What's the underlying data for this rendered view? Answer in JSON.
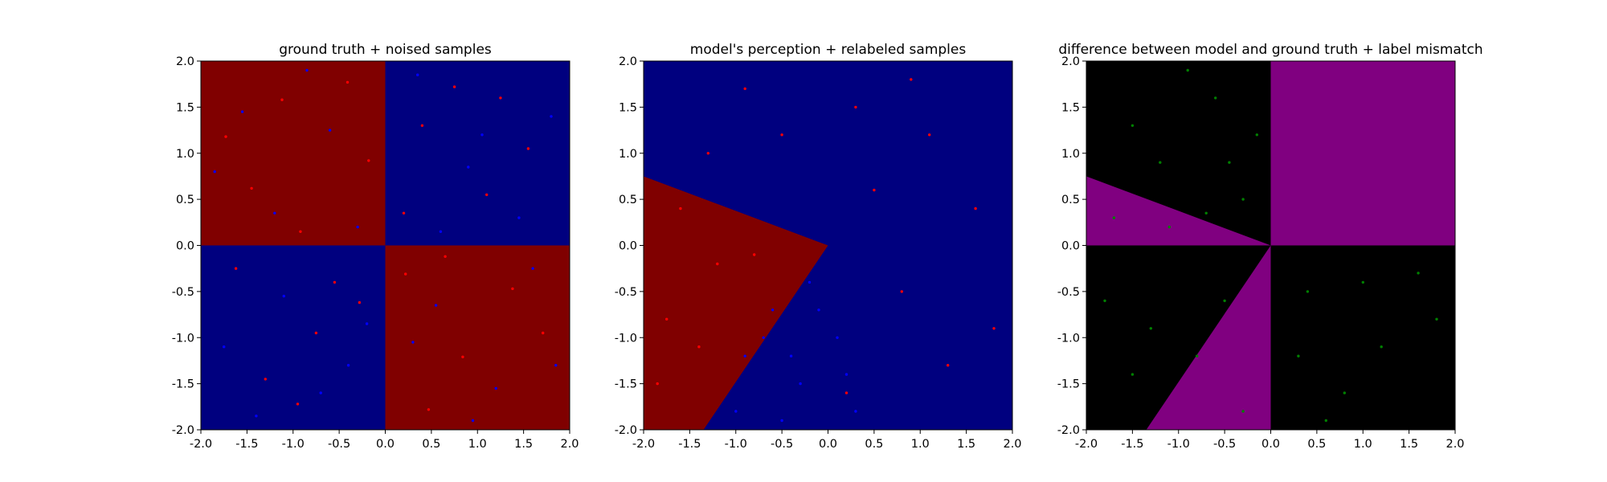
{
  "chart_data": [
    {
      "type": "scatter",
      "title": "ground truth + noised samples",
      "xlabel": "",
      "ylabel": "",
      "xlim": [
        -2.0,
        2.0
      ],
      "ylim": [
        -2.0,
        2.0
      ],
      "xticks": [
        "-2.0",
        "-1.5",
        "-1.0",
        "-0.5",
        "0.0",
        "0.5",
        "1.0",
        "1.5",
        "2.0"
      ],
      "yticks": [
        "-2.0",
        "-1.5",
        "-1.0",
        "-0.5",
        "0.0",
        "0.5",
        "1.0",
        "1.5",
        "2.0"
      ],
      "grid": false,
      "background": "quadrant checkerboard: red where x*y<0, blue where x*y>0",
      "colors": {
        "red_region": "#800000",
        "blue_region": "#00007f",
        "red_points": "#ff0000",
        "blue_points": "#0000ff"
      },
      "series": [
        {
          "color": "#ff0000",
          "points": [
            [
              -1.45,
              0.62
            ],
            [
              -0.92,
              0.15
            ],
            [
              -0.41,
              1.77
            ],
            [
              -1.73,
              1.18
            ],
            [
              -0.18,
              0.92
            ],
            [
              -1.12,
              1.58
            ],
            [
              0.22,
              -0.31
            ],
            [
              0.84,
              -1.21
            ],
            [
              1.38,
              -0.47
            ],
            [
              0.47,
              -1.78
            ],
            [
              1.71,
              -0.95
            ],
            [
              0.65,
              -0.12
            ],
            [
              -0.75,
              -0.95
            ],
            [
              -1.3,
              -1.45
            ],
            [
              -0.28,
              -0.62
            ],
            [
              -1.62,
              -0.25
            ],
            [
              -0.95,
              -1.72
            ],
            [
              -0.55,
              -0.4
            ],
            [
              0.4,
              1.3
            ],
            [
              1.1,
              0.55
            ],
            [
              0.75,
              1.72
            ],
            [
              1.55,
              1.05
            ],
            [
              0.2,
              0.35
            ],
            [
              1.25,
              1.6
            ]
          ]
        },
        {
          "color": "#0000ff",
          "points": [
            [
              -1.2,
              0.35
            ],
            [
              -0.6,
              1.25
            ],
            [
              -1.85,
              0.8
            ],
            [
              -0.3,
              0.2
            ],
            [
              -0.85,
              1.9
            ],
            [
              -1.55,
              1.45
            ],
            [
              0.55,
              -0.65
            ],
            [
              1.2,
              -1.55
            ],
            [
              0.3,
              -1.05
            ],
            [
              1.6,
              -0.25
            ],
            [
              0.95,
              -1.9
            ],
            [
              1.85,
              -1.3
            ],
            [
              -0.4,
              -1.3
            ],
            [
              -1.1,
              -0.55
            ],
            [
              -0.7,
              -1.6
            ],
            [
              -1.75,
              -1.1
            ],
            [
              -0.2,
              -0.85
            ],
            [
              -1.4,
              -1.85
            ],
            [
              0.9,
              0.85
            ],
            [
              1.45,
              0.3
            ],
            [
              0.35,
              1.85
            ],
            [
              1.8,
              1.4
            ],
            [
              0.6,
              0.15
            ],
            [
              1.05,
              1.2
            ]
          ]
        }
      ]
    },
    {
      "type": "scatter",
      "title": "model's perception + relabeled samples",
      "xlabel": "",
      "ylabel": "",
      "xlim": [
        -2.0,
        2.0
      ],
      "ylim": [
        -2.0,
        2.0
      ],
      "xticks": [
        "-2.0",
        "-1.5",
        "-1.0",
        "-0.5",
        "0.0",
        "0.5",
        "1.0",
        "1.5",
        "2.0"
      ],
      "yticks": [
        "-2.0",
        "-1.5",
        "-1.0",
        "-0.5",
        "0.0",
        "0.5",
        "1.0",
        "1.5",
        "2.0"
      ],
      "grid": false,
      "background": "blue everywhere except a red wedge from the origin through (-2.0, 0.75) and (-1.35, -2.0)",
      "colors": {
        "red_region": "#800000",
        "blue_region": "#00007f",
        "red_points": "#ff0000",
        "blue_points": "#0000ff"
      },
      "series": [
        {
          "color": "#ff0000",
          "points": [
            [
              -1.6,
              0.4
            ],
            [
              -1.2,
              -0.2
            ],
            [
              -1.75,
              -0.8
            ],
            [
              -0.8,
              -0.1
            ],
            [
              -1.85,
              -1.5
            ],
            [
              -1.4,
              -1.1
            ],
            [
              0.3,
              1.5
            ],
            [
              1.1,
              1.2
            ],
            [
              -0.5,
              1.2
            ],
            [
              1.6,
              0.4
            ],
            [
              0.8,
              -0.5
            ],
            [
              1.3,
              -1.3
            ],
            [
              -0.9,
              1.7
            ],
            [
              0.5,
              0.6
            ],
            [
              1.8,
              -0.9
            ],
            [
              0.2,
              -1.6
            ],
            [
              -1.3,
              1.0
            ],
            [
              0.9,
              1.8
            ]
          ]
        },
        {
          "color": "#0000ff",
          "points": [
            [
              -0.9,
              -1.2
            ],
            [
              -0.6,
              -0.7
            ],
            [
              -0.3,
              -1.5
            ],
            [
              -1.0,
              -1.8
            ],
            [
              -0.2,
              -0.4
            ],
            [
              0.1,
              -1.0
            ],
            [
              -0.5,
              -1.9
            ],
            [
              0.2,
              -1.4
            ],
            [
              -0.7,
              -1.0
            ],
            [
              -0.1,
              -0.7
            ],
            [
              0.3,
              -1.8
            ],
            [
              -0.4,
              -1.2
            ]
          ]
        }
      ]
    },
    {
      "type": "scatter",
      "title": "difference between model and ground truth + label mismatch",
      "xlabel": "",
      "ylabel": "",
      "xlim": [
        -2.0,
        2.0
      ],
      "ylim": [
        -2.0,
        2.0
      ],
      "xticks": [
        "-2.0",
        "-1.5",
        "-1.0",
        "-0.5",
        "0.0",
        "0.5",
        "1.0",
        "1.5",
        "2.0"
      ],
      "yticks": [
        "-2.0",
        "-1.5",
        "-1.0",
        "-0.5",
        "0.0",
        "0.5",
        "1.0",
        "1.5",
        "2.0"
      ],
      "grid": false,
      "background": "black where model agrees with ground truth, purple where it differs",
      "colors": {
        "agree_region": "#000000",
        "differ_region": "#800080",
        "mismatch_points": "#008000"
      },
      "series": [
        {
          "color": "#008000",
          "points": [
            [
              -1.2,
              0.9
            ],
            [
              -0.6,
              1.6
            ],
            [
              -1.5,
              1.3
            ],
            [
              -0.3,
              0.5
            ],
            [
              -0.9,
              1.9
            ],
            [
              -0.15,
              1.2
            ],
            [
              0.4,
              -0.5
            ],
            [
              1.2,
              -1.1
            ],
            [
              0.8,
              -1.6
            ],
            [
              1.6,
              -0.3
            ],
            [
              0.3,
              -1.2
            ],
            [
              1.8,
              -0.8
            ],
            [
              -1.7,
              0.3
            ],
            [
              -1.1,
              0.2
            ],
            [
              -0.5,
              -0.6
            ],
            [
              -0.8,
              -1.2
            ],
            [
              -1.5,
              -1.4
            ],
            [
              -0.3,
              -1.8
            ],
            [
              -1.8,
              -0.6
            ],
            [
              -0.45,
              0.9
            ],
            [
              1.0,
              -0.4
            ],
            [
              0.6,
              -1.9
            ],
            [
              -0.7,
              0.35
            ],
            [
              -1.3,
              -0.9
            ]
          ]
        }
      ]
    }
  ]
}
